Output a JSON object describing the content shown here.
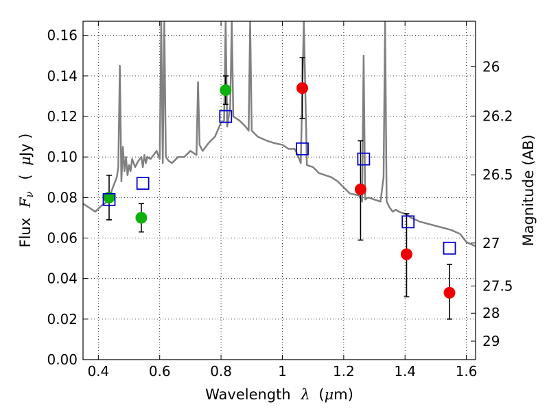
{
  "chart_data": {
    "type": "scatter",
    "title": "",
    "xlabel": "Wavelength",
    "xlabel_symbol": "λ",
    "xlabel_unit_open": "(",
    "xlabel_unit_mu": "μ",
    "xlabel_unit_rest": "m)",
    "ylabel": "Flux",
    "ylabel_symbol": "F",
    "ylabel_symbol_sub": "ν",
    "ylabel_unit_open": "(",
    "ylabel_unit_mu": "μ",
    "ylabel_unit_rest": "Jy )",
    "ylabel_right": "Magnitude (AB)",
    "xlim": [
      0.35,
      1.63
    ],
    "ylim": [
      0.0,
      0.167
    ],
    "grid": true,
    "x_ticks": [
      {
        "value": 0.4,
        "label": "0.4"
      },
      {
        "value": 0.6,
        "label": "0.6"
      },
      {
        "value": 0.8,
        "label": "0.8"
      },
      {
        "value": 1.0,
        "label": "1"
      },
      {
        "value": 1.2,
        "label": "1.2"
      },
      {
        "value": 1.4,
        "label": "1.4"
      },
      {
        "value": 1.6,
        "label": "1.6"
      }
    ],
    "y_ticks": [
      {
        "value": 0.0,
        "label": "0.00"
      },
      {
        "value": 0.02,
        "label": "0.02"
      },
      {
        "value": 0.04,
        "label": "0.04"
      },
      {
        "value": 0.06,
        "label": "0.06"
      },
      {
        "value": 0.08,
        "label": "0.08"
      },
      {
        "value": 0.1,
        "label": "0.10"
      },
      {
        "value": 0.12,
        "label": "0.12"
      },
      {
        "value": 0.14,
        "label": "0.14"
      },
      {
        "value": 0.16,
        "label": "0.16"
      }
    ],
    "y_right_ticks": [
      {
        "mag": 26,
        "label": "26"
      },
      {
        "mag": 26.2,
        "label": "26.2"
      },
      {
        "mag": 26.5,
        "label": "26.5"
      },
      {
        "mag": 27,
        "label": "27"
      },
      {
        "mag": 27.5,
        "label": "27.5"
      },
      {
        "mag": 28,
        "label": "28"
      },
      {
        "mag": 29,
        "label": "29"
      }
    ],
    "series": [
      {
        "name": "Model spectrum",
        "kind": "line",
        "color": "#808080",
        "x": [
          0.35,
          0.37,
          0.39,
          0.41,
          0.43,
          0.44,
          0.45,
          0.46,
          0.465,
          0.47,
          0.475,
          0.48,
          0.485,
          0.49,
          0.495,
          0.5,
          0.505,
          0.51,
          0.52,
          0.53,
          0.54,
          0.545,
          0.55,
          0.555,
          0.56,
          0.57,
          0.58,
          0.59,
          0.6,
          0.605,
          0.61,
          0.615,
          0.62,
          0.63,
          0.64,
          0.66,
          0.68,
          0.7,
          0.72,
          0.725,
          0.73,
          0.74,
          0.76,
          0.78,
          0.8,
          0.81,
          0.815,
          0.82,
          0.83,
          0.835,
          0.84,
          0.86,
          0.88,
          0.89,
          0.895,
          0.9,
          0.92,
          0.95,
          0.97,
          1.0,
          1.02,
          1.04,
          1.05,
          1.06,
          1.07,
          1.08,
          1.1,
          1.12,
          1.16,
          1.18,
          1.2,
          1.22,
          1.25,
          1.26,
          1.265,
          1.27,
          1.28,
          1.3,
          1.32,
          1.33,
          1.335,
          1.34,
          1.35,
          1.36,
          1.37,
          1.38,
          1.4,
          1.42,
          1.45,
          1.5,
          1.55,
          1.58,
          1.6,
          1.63
        ],
        "y": [
          0.077,
          0.075,
          0.073,
          0.076,
          0.078,
          0.082,
          0.086,
          0.09,
          0.095,
          0.145,
          0.088,
          0.105,
          0.093,
          0.1,
          0.091,
          0.096,
          0.093,
          0.099,
          0.095,
          0.098,
          0.1,
          0.095,
          0.101,
          0.097,
          0.1,
          0.099,
          0.101,
          0.103,
          0.099,
          0.167,
          0.097,
          0.167,
          0.1,
          0.098,
          0.097,
          0.1,
          0.1,
          0.103,
          0.101,
          0.137,
          0.106,
          0.103,
          0.107,
          0.11,
          0.117,
          0.118,
          0.167,
          0.115,
          0.125,
          0.167,
          0.12,
          0.118,
          0.115,
          0.113,
          0.167,
          0.113,
          0.11,
          0.108,
          0.107,
          0.106,
          0.104,
          0.104,
          0.101,
          0.097,
          0.167,
          0.096,
          0.095,
          0.092,
          0.09,
          0.088,
          0.085,
          0.082,
          0.081,
          0.078,
          0.15,
          0.079,
          0.08,
          0.079,
          0.078,
          0.09,
          0.167,
          0.078,
          0.075,
          0.073,
          0.074,
          0.073,
          0.072,
          0.07,
          0.068,
          0.066,
          0.064,
          0.062,
          0.058,
          0.056
        ]
      },
      {
        "name": "Observed (green)",
        "kind": "points",
        "color": "#10b010",
        "x": [
          0.435,
          0.54,
          0.815
        ],
        "y": [
          0.08,
          0.07,
          0.133
        ],
        "err_low": [
          0.011,
          0.007,
          0.007
        ],
        "err_high": [
          0.011,
          0.007,
          0.007
        ]
      },
      {
        "name": "Observed (red)",
        "kind": "points",
        "color": "#ee0000",
        "x": [
          1.065,
          1.255,
          1.405,
          1.545
        ],
        "y": [
          0.134,
          0.084,
          0.052,
          0.033
        ],
        "err_low": [
          0.015,
          0.025,
          0.021,
          0.013
        ],
        "err_high": [
          0.015,
          0.024,
          0.02,
          0.014
        ]
      },
      {
        "name": "Model bandpass (blue squares)",
        "kind": "squares",
        "color": "#0000cc",
        "x": [
          0.435,
          0.545,
          0.815,
          1.065,
          1.265,
          1.41,
          1.545
        ],
        "y": [
          0.079,
          0.087,
          0.12,
          0.104,
          0.099,
          0.068,
          0.055
        ]
      }
    ]
  }
}
